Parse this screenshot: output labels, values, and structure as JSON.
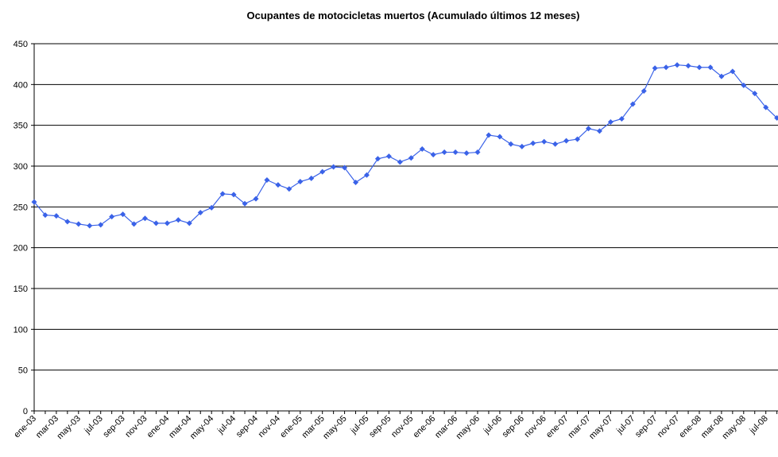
{
  "chart_data": {
    "type": "line",
    "title": "Ocupantes de motocicletas muertos (Acumulado últimos 12 meses)",
    "categories": [
      "ene-03",
      null,
      "mar-03",
      null,
      "may-03",
      null,
      "jul-03",
      null,
      "sep-03",
      null,
      "nov-03",
      null,
      "ene-04",
      null,
      "mar-04",
      null,
      "may-04",
      null,
      "jul-04",
      null,
      "sep-04",
      null,
      "nov-04",
      null,
      "ene-05",
      null,
      "mar-05",
      null,
      "may-05",
      null,
      "jul-05",
      null,
      "sep-05",
      null,
      "nov-05",
      null,
      "ene-06",
      null,
      "mar-06",
      null,
      "may-06",
      null,
      "jul-06",
      null,
      "sep-06",
      null,
      "nov-06",
      null,
      "ene-07",
      null,
      "mar-07",
      null,
      "may-07",
      null,
      "jul-07",
      null,
      "sep-07",
      null,
      "nov-07",
      null,
      "ene-08",
      null,
      "mar-08",
      null,
      "may-08",
      null,
      "jul-08",
      null
    ],
    "series": [
      {
        "name": "Ocupantes de motocicletas muertos",
        "color": "#3a62e8",
        "values": [
          256,
          240,
          239,
          232,
          229,
          227,
          228,
          238,
          241,
          229,
          236,
          230,
          230,
          234,
          230,
          243,
          249,
          266,
          265,
          254,
          260,
          283,
          277,
          272,
          281,
          285,
          293,
          299,
          298,
          280,
          289,
          309,
          312,
          305,
          310,
          321,
          314,
          317,
          317,
          316,
          317,
          338,
          336,
          327,
          324,
          328,
          330,
          327,
          331,
          333,
          346,
          343,
          354,
          358,
          376,
          392,
          420,
          421,
          424,
          423,
          421,
          421,
          410,
          416,
          399,
          389,
          372,
          359
        ]
      }
    ],
    "ylim": [
      0,
      450
    ],
    "yticks": [
      0,
      50,
      100,
      150,
      200,
      250,
      300,
      350,
      400,
      450
    ],
    "grid": true
  }
}
